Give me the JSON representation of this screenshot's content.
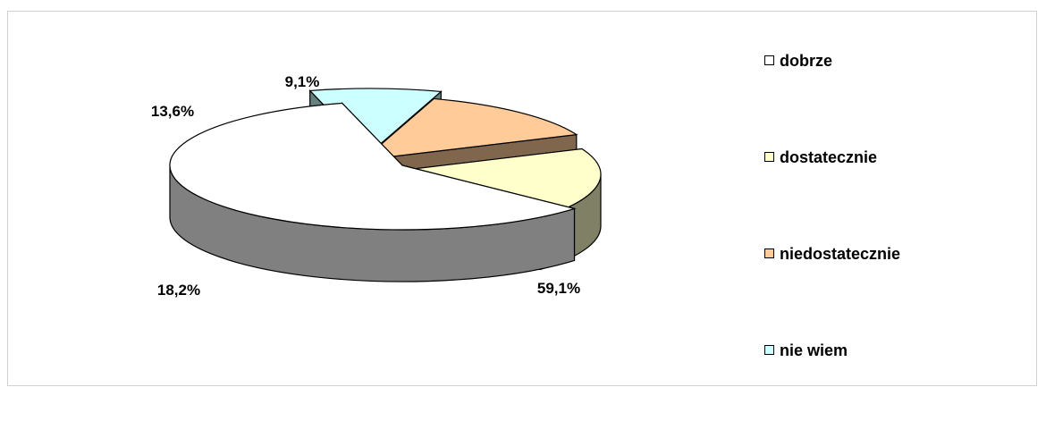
{
  "chart_data": {
    "type": "pie",
    "style": "3d-exploded",
    "categories": [
      "dobrze",
      "dostatecznie",
      "niedostatecznie",
      "nie wiem"
    ],
    "values": [
      59.1,
      18.2,
      13.6,
      9.1
    ],
    "value_labels": [
      "59,1%",
      "18,2%",
      "13,6%",
      "9,1%"
    ],
    "colors": {
      "dobrze": "#ffffff",
      "dostatecznie": "#ffffcc",
      "niedostatecznie": "#ffcc99",
      "nie wiem": "#ccffff"
    },
    "legend_position": "right"
  }
}
